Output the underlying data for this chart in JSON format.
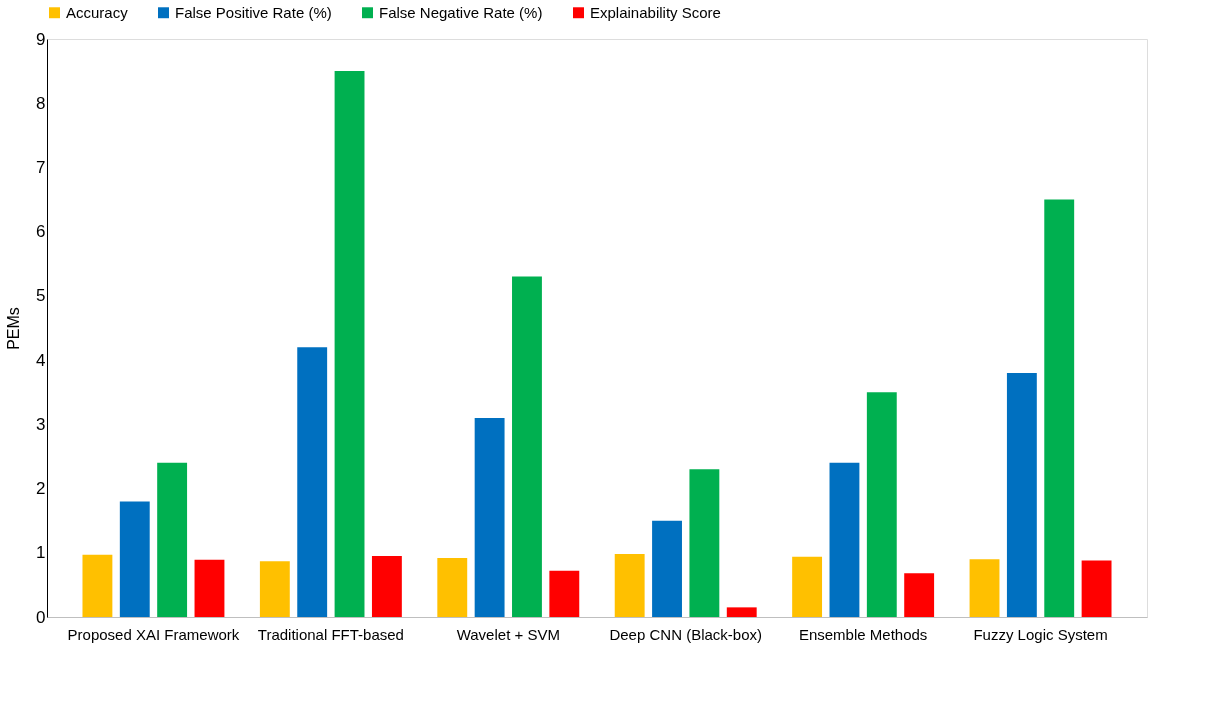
{
  "chart_data": {
    "type": "bar",
    "ylabel": "PEMs",
    "categories": [
      "Proposed XAI Framework",
      "Traditional FFT-based",
      "Wavelet + SVM",
      "Deep CNN (Black-box)",
      "Ensemble Methods",
      "Fuzzy Logic System"
    ],
    "series": [
      {
        "name": "Accuracy",
        "color": "#ffc000",
        "values": [
          0.97,
          0.87,
          0.92,
          0.98,
          0.94,
          0.9
        ]
      },
      {
        "name": "False Positive Rate (%)",
        "color": "#0070c0",
        "values": [
          1.8,
          4.2,
          3.1,
          1.5,
          2.4,
          3.8
        ]
      },
      {
        "name": "False Negative Rate (%)",
        "color": "#00b050",
        "values": [
          2.4,
          8.5,
          5.3,
          2.3,
          3.5,
          6.5
        ]
      },
      {
        "name": "Explainability Score",
        "color": "#ff0000",
        "values": [
          0.89,
          0.95,
          0.72,
          0.15,
          0.68,
          0.88
        ]
      }
    ],
    "ylim": [
      0,
      9
    ],
    "yticks": [
      0,
      1,
      2,
      3,
      4,
      5,
      6,
      7,
      8,
      9
    ],
    "grid": false,
    "legend": "top"
  }
}
